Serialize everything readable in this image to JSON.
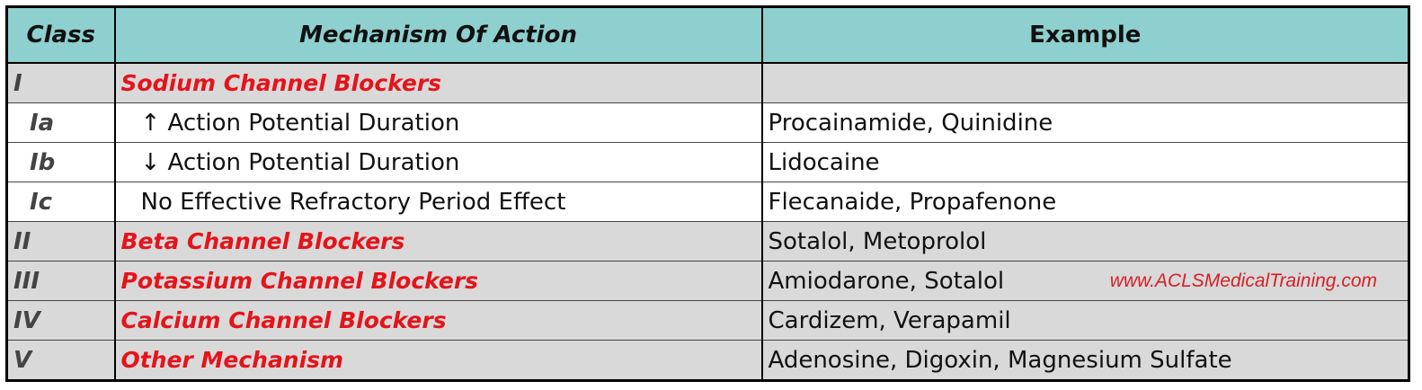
{
  "table": {
    "header": [
      "Class",
      "Mechanism Of Action",
      "Example"
    ],
    "rows": [
      {
        "class": "I",
        "mechanism": "Sodium Channel Blockers"
      },
      {
        "class": "Ia",
        "mechanism": "↑ Action Potential Duration",
        "example": "Procainamide, Quinidine"
      },
      {
        "class": "Ib",
        "mechanism": "↓ Action Potential Duration",
        "example": "Lidocaine"
      },
      {
        "class": "Ic",
        "mechanism": "No Effective Refractory Period Effect",
        "example": "Flecanaide, Propafenone"
      },
      {
        "class": "II",
        "mechanism": "Beta Channel Blockers",
        "example": "Sotalol, Metoprolol"
      },
      {
        "class": "III",
        "mechanism": "Potassium Channel Blockers",
        "example": "Amiodarone, Sotalol"
      },
      {
        "class": "IV",
        "mechanism": "Calcium Channel Blockers",
        "example": "Cardizem, Verapamil"
      },
      {
        "class": "V",
        "mechanism": "Other Mechanism",
        "example": "Adenosine, Digoxin, Magnesium Sulfate"
      }
    ],
    "watermark": "www.ACLSMedicalTraining.com"
  }
}
